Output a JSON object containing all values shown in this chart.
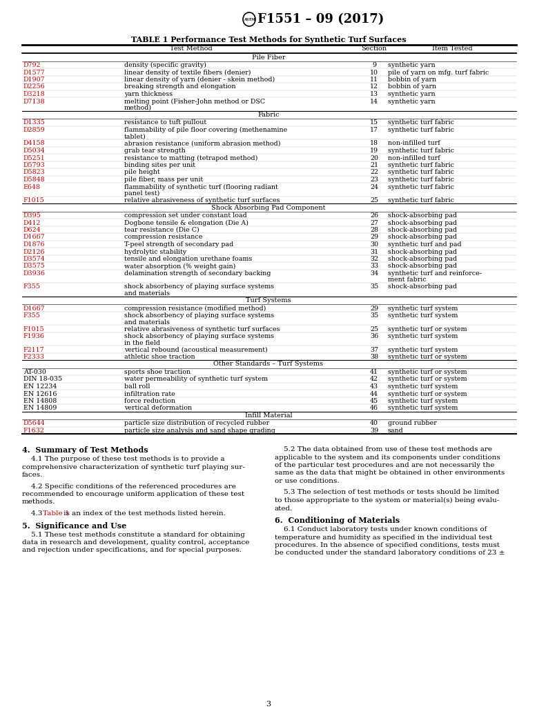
{
  "title": "F1551 – 09 (2017)",
  "table_title": "TABLE 1 Performance Test Methods for Synthetic Turf Surfaces",
  "sections": [
    {
      "name": "Pile Fiber",
      "rows": [
        {
          "code": "D792",
          "method": "density (specific gravity)",
          "section": "9",
          "item": "synthetic yarn",
          "color": "red"
        },
        {
          "code": "D1577",
          "method": "linear density of textile fibers (denier)",
          "section": "10",
          "item": "pile of yarn on mfg. turf fabric",
          "color": "red"
        },
        {
          "code": "D1907",
          "method": "linear density of yarn (denier - skein method)",
          "section": "11",
          "item": "bobbin of yarn",
          "color": "red"
        },
        {
          "code": "D2256",
          "method": "breaking strength and elongation",
          "section": "12",
          "item": "bobbin of yarn",
          "color": "red"
        },
        {
          "code": "D3218",
          "method": "yarn thickness",
          "section": "13",
          "item": "synthetic yarn",
          "color": "red"
        },
        {
          "code": "D7138",
          "method": "melting point (Fisher-John method or DSC\n      method)",
          "section": "14",
          "item": "synthetic yarn",
          "color": "red"
        }
      ]
    },
    {
      "name": "Fabric",
      "rows": [
        {
          "code": "D1335",
          "method": "resistance to tuft pullout",
          "section": "15",
          "item": "synthetic turf fabric",
          "color": "red"
        },
        {
          "code": "D2859",
          "method": "flammability of pile floor covering (methenamine\n      tablet)",
          "section": "17",
          "item": "synthetic turf fabric",
          "color": "red"
        },
        {
          "code": "D4158",
          "method": "abrasion resistance (uniform abrasion method)",
          "section": "18",
          "item": "non-infilled turf",
          "color": "red"
        },
        {
          "code": "D5034",
          "method": "grab tear strength",
          "section": "19",
          "item": "synthetic turf fabric",
          "color": "red"
        },
        {
          "code": "D5251",
          "method": "resistance to matting (tetrapod method)",
          "section": "20",
          "item": "non-infilled turf",
          "color": "red"
        },
        {
          "code": "D5793",
          "method": "binding sites per unit",
          "section": "21",
          "item": "synthetic turf fabric",
          "color": "red"
        },
        {
          "code": "D5823",
          "method": "pile height",
          "section": "22",
          "item": "synthetic turf fabric",
          "color": "red"
        },
        {
          "code": "D5848",
          "method": "pile fiber, mass per unit",
          "section": "23",
          "item": "synthetic turf fabric",
          "color": "red"
        },
        {
          "code": "E648",
          "method": "flammability of synthetic turf (flooring radiant\n      panel test)",
          "section": "24",
          "item": "synthetic turf fabric",
          "color": "red"
        },
        {
          "code": "F1015",
          "method": "relative abrasiveness of synthetic turf surfaces",
          "section": "25",
          "item": "synthetic turf fabric",
          "color": "red"
        }
      ]
    },
    {
      "name": "Shock Absorbing Pad Component",
      "rows": [
        {
          "code": "D395",
          "method": "compression set under constant load",
          "section": "26",
          "item": "shock-absorbing pad",
          "color": "red"
        },
        {
          "code": "D412",
          "method": "Dogbone tensile & elongation (Die A)",
          "section": "27",
          "item": "shock-absorbing pad",
          "color": "red"
        },
        {
          "code": "D624",
          "method": "tear resistance (Die C)",
          "section": "28",
          "item": "shock-absorbing pad",
          "color": "red"
        },
        {
          "code": "D1667",
          "method": "compression resistance",
          "section": "29",
          "item": "shock-absorbing pad",
          "color": "red"
        },
        {
          "code": "D1876",
          "method": "T-peel strength of secondary pad",
          "section": "30",
          "item": "synthetic turf and pad",
          "color": "red"
        },
        {
          "code": "D2126",
          "method": "hydrolytic stability",
          "section": "31",
          "item": "shock-absorbing pad",
          "color": "red"
        },
        {
          "code": "D3574",
          "method": "tensile and elongation urethane foams",
          "section": "32",
          "item": "shock-absorbing pad",
          "color": "red"
        },
        {
          "code": "D3575",
          "method": "water absorption (% weight gain)",
          "section": "33",
          "item": "shock-absorbing pad",
          "color": "red"
        },
        {
          "code": "D3936",
          "method": "delamination strength of secondary backing",
          "section": "34",
          "item": "synthetic turf and reinforce-\n      ment fabric",
          "color": "red"
        },
        {
          "code": "F355",
          "method": "shock absorbency of playing surface systems\n      and materials",
          "section": "35",
          "item": "shock-absorbing pad",
          "color": "red"
        }
      ]
    },
    {
      "name": "Turf Systems",
      "rows": [
        {
          "code": "D1667",
          "method": "compression resistance (modified method)",
          "section": "29",
          "item": "synthetic turf system",
          "color": "red"
        },
        {
          "code": "F355",
          "method": "shock absorbency of playing surface systems\n      and materials",
          "section": "35",
          "item": "synthetic turf system",
          "color": "red"
        },
        {
          "code": "F1015",
          "method": "relative abrasiveness of synthetic turf surfaces",
          "section": "25",
          "item": "synthetic turf or system",
          "color": "red"
        },
        {
          "code": "F1936",
          "method": "shock absorbency of playing surface systems\n      in the field",
          "section": "36",
          "item": "synthetic turf system",
          "color": "red"
        },
        {
          "code": "F2117",
          "method": "vertical rebound (acoustical measurement)",
          "section": "37",
          "item": "synthetic turf system",
          "color": "red"
        },
        {
          "code": "F2333",
          "method": "athletic shoe traction",
          "section": "38",
          "item": "synthetic turf or system",
          "color": "red"
        }
      ]
    },
    {
      "name": "Other Standards – Turf Systems",
      "rows": [
        {
          "code": "AT-030",
          "method": "sports shoe traction",
          "section": "41",
          "item": "synthetic turf or system",
          "color": "black"
        },
        {
          "code": "DIN 18-035",
          "method": "water permeability of synthetic turf system",
          "section": "42",
          "item": "synthetic turf or system",
          "color": "black"
        },
        {
          "code": "EN 12234",
          "method": "ball roll",
          "section": "43",
          "item": "synthetic turf system",
          "color": "black"
        },
        {
          "code": "EN 12616",
          "method": "infiltration rate",
          "section": "44",
          "item": "synthetic turf or system",
          "color": "black"
        },
        {
          "code": "EN 14808",
          "method": "force reduction",
          "section": "45",
          "item": "synthetic turf system",
          "color": "black"
        },
        {
          "code": "EN 14809",
          "method": "vertical deformation",
          "section": "46",
          "item": "synthetic turf system",
          "color": "black"
        }
      ]
    },
    {
      "name": "Infill Material",
      "rows": [
        {
          "code": "D5644",
          "method": "particle size distribution of recycled rubber",
          "section": "40",
          "item": "ground rubber",
          "color": "red"
        },
        {
          "code": "F1632",
          "method": "particle size analysis and sand shape grading",
          "section": "39",
          "item": "sand",
          "color": "red"
        }
      ]
    }
  ],
  "body_left": [
    {
      "type": "heading",
      "text": "4.  Summary of Test Methods"
    },
    {
      "type": "para",
      "text": "    4.1 The purpose of these test methods is to provide a\ncomprehensive characterization of synthetic turf playing sur-\nfaces."
    },
    {
      "type": "para",
      "text": "    4.2 Specific conditions of the referenced procedures are\nrecommended to encourage uniform application of these test\nmethods."
    },
    {
      "type": "para_link",
      "text": "    4.3 ",
      "link": "Table 1",
      "text2": " is an index of the test methods listed herein."
    },
    {
      "type": "heading",
      "text": "5.  Significance and Use"
    },
    {
      "type": "para",
      "text": "    5.1 These test methods constitute a standard for obtaining\ndata in research and development, quality control, acceptance\nand rejection under specifications, and for special purposes."
    }
  ],
  "body_right": [
    {
      "type": "para",
      "text": "    5.2 The data obtained from use of these test methods are\napplicable to the system and its components under conditions\nof the particular test procedures and are not necessarily the\nsame as the data that might be obtained in other environments\nor use conditions."
    },
    {
      "type": "para",
      "text": "    5.3 The selection of test methods or tests should be limited\nto those appropriate to the system or material(s) being evalu-\nated."
    },
    {
      "type": "heading",
      "text": "6.  Conditioning of Materials"
    },
    {
      "type": "para",
      "text": "    6.1 Conduct laboratory tests under known conditions of\ntemperature and humidity as specified in the individual test\nprocedures. In the absence of specified conditions, tests must\nbe conducted under the standard laboratory conditions of 23 ±"
    }
  ],
  "page_number": "3",
  "bg_color": "#ffffff",
  "text_color": "#000000",
  "red_color": "#cc0000"
}
